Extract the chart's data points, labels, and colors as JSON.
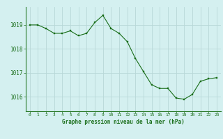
{
  "x": [
    0,
    1,
    2,
    3,
    4,
    5,
    6,
    7,
    8,
    9,
    10,
    11,
    12,
    13,
    14,
    15,
    16,
    17,
    18,
    19,
    20,
    21,
    22,
    23
  ],
  "y": [
    1019.0,
    1019.0,
    1018.85,
    1018.65,
    1018.65,
    1018.75,
    1018.55,
    1018.65,
    1019.1,
    1019.4,
    1018.85,
    1018.65,
    1018.3,
    1017.6,
    1017.05,
    1016.5,
    1016.35,
    1016.35,
    1015.95,
    1015.9,
    1016.1,
    1016.65,
    1016.75,
    1016.8
  ],
  "line_color": "#1a6e1a",
  "marker_color": "#1a6e1a",
  "bg_color": "#d4f0f0",
  "grid_color": "#b8d8d8",
  "border_color": "#2e7d2e",
  "xlabel": "Graphe pression niveau de la mer (hPa)",
  "xlabel_color": "#1a6e1a",
  "tick_color": "#1a6e1a",
  "yticks": [
    1016,
    1017,
    1018,
    1019
  ],
  "ylim": [
    1015.4,
    1019.75
  ],
  "xlim": [
    -0.5,
    23.5
  ]
}
